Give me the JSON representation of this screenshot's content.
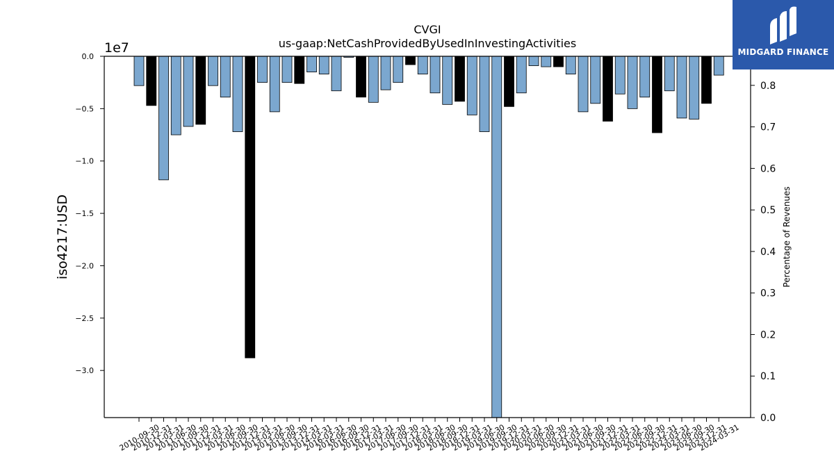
{
  "brand": {
    "name": "MIDGARD FINANCE",
    "bg_color": "#2b59ab"
  },
  "chart_data": {
    "type": "bar",
    "title": "CVGI",
    "subtitle": "us-gaap:NetCashProvidedByUsedInInvestingActivities",
    "ylabel": "iso4217:USD",
    "y_offset_label": "1e7",
    "y2label": "Percentage of Revenues",
    "ylim": [
      -34500000,
      0
    ],
    "y_ticks": [
      0,
      -5000000,
      -10000000,
      -15000000,
      -20000000,
      -25000000,
      -30000000
    ],
    "y_tick_labels": [
      "0.0",
      "−0.5",
      "−1.0",
      "−1.5",
      "−2.0",
      "−2.5",
      "−3.0"
    ],
    "y2lim": [
      0,
      0.87
    ],
    "y2_ticks": [
      0,
      0.1,
      0.2,
      0.3,
      0.4,
      0.5,
      0.6,
      0.7,
      0.8
    ],
    "y2_tick_labels": [
      "0.0",
      "0.1",
      "0.2",
      "0.3",
      "0.4",
      "0.5",
      "0.6",
      "0.7",
      "0.8"
    ],
    "colors": {
      "quarterly": "#7ba7cf",
      "annual": "#000000",
      "edge": "#000000"
    },
    "grid": false,
    "categories": [
      "2010-09-30",
      "2010-12-31",
      "2011-03-31",
      "2011-06-30",
      "2011-09-30",
      "2011-12-31",
      "2012-03-31",
      "2012-06-30",
      "2012-09-30",
      "2012-12-31",
      "2013-03-31",
      "2013-06-30",
      "2013-09-30",
      "2013-12-31",
      "2014-03-31",
      "2016-03-31",
      "2016-06-30",
      "2016-09-30",
      "2016-12-31",
      "2017-03-31",
      "2017-06-30",
      "2017-09-30",
      "2017-12-31",
      "2018-03-31",
      "2018-06-30",
      "2018-09-30",
      "2018-12-31",
      "2019-03-31",
      "2019-06-30",
      "2019-09-30",
      "2019-12-31",
      "2020-03-31",
      "2020-06-30",
      "2020-09-30",
      "2020-12-31",
      "2021-03-31",
      "2021-06-30",
      "2021-09-30",
      "2021-12-31",
      "2022-03-31",
      "2022-06-30",
      "2022-09-30",
      "2022-12-31",
      "2023-03-31",
      "2023-06-30",
      "2023-09-30",
      "2023-12-31",
      "2024-03-31"
    ],
    "values": [
      -2800000,
      -4700000,
      -11800000,
      -7500000,
      -6700000,
      -6500000,
      -2800000,
      -3900000,
      -7200000,
      -28800000,
      -2500000,
      -5300000,
      -2500000,
      -2600000,
      -1500000,
      -1700000,
      -3300000,
      -100000,
      -3900000,
      -4400000,
      -3200000,
      -2500000,
      -800000,
      -1700000,
      -3500000,
      -4600000,
      -4300000,
      -5600000,
      -7200000,
      -34500000,
      -4800000,
      -3500000,
      -900000,
      -1000000,
      -1000000,
      -1700000,
      -5300000,
      -4500000,
      -6200000,
      -3600000,
      -5000000,
      -3900000,
      -7300000,
      -3300000,
      -5900000,
      -6000000,
      -4500000,
      -1800000
    ],
    "period_type": [
      "Q",
      "A",
      "Q",
      "Q",
      "Q",
      "A",
      "Q",
      "Q",
      "Q",
      "A",
      "Q",
      "Q",
      "Q",
      "A",
      "Q",
      "Q",
      "Q",
      "Q",
      "A",
      "Q",
      "Q",
      "Q",
      "A",
      "Q",
      "Q",
      "Q",
      "A",
      "Q",
      "Q",
      "Q",
      "A",
      "Q",
      "Q",
      "Q",
      "A",
      "Q",
      "Q",
      "Q",
      "A",
      "Q",
      "Q",
      "Q",
      "A",
      "Q",
      "Q",
      "Q",
      "A",
      "Q"
    ]
  }
}
